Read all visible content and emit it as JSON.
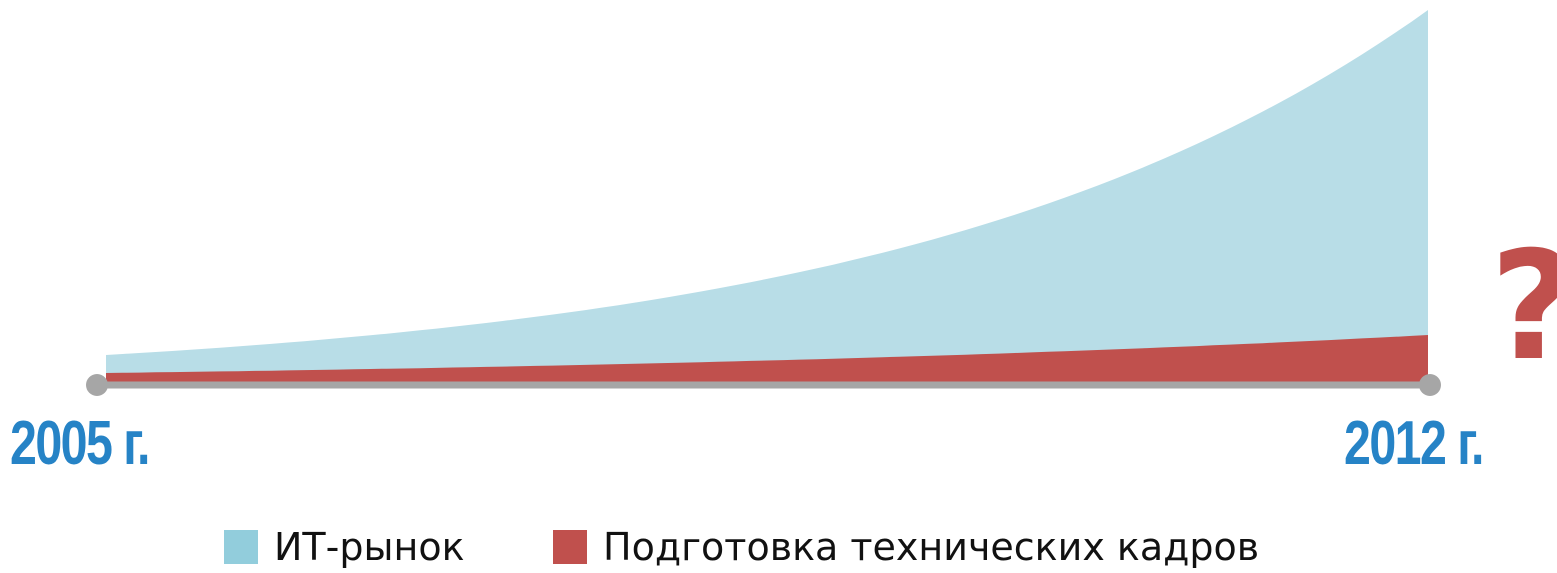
{
  "chart_data": {
    "type": "area",
    "title": "",
    "xlabel": "",
    "ylabel": "",
    "x": [
      2005,
      2012
    ],
    "categories": [
      "2005 г.",
      "2012 г."
    ],
    "series": [
      {
        "name": "ИТ-рынок",
        "color": "#b8dde7",
        "values": [
          30,
          375
        ],
        "growth": "exponential"
      },
      {
        "name": "Подготовка технических кадров",
        "color": "#c0504d",
        "values": [
          12,
          50
        ],
        "growth": "exponential"
      }
    ],
    "ylim": [
      0,
      375
    ],
    "grid": false,
    "legend_position": "bottom",
    "annotation": "?",
    "axis_color": "#a6a6a6"
  },
  "labels": {
    "year_start": "2005 г.",
    "year_end": "2012 г.",
    "question": "?",
    "year_color": "#2683c6",
    "question_color": "#c0504d"
  },
  "legend": [
    {
      "label": "ИТ-рынок",
      "color": "#92cddc"
    },
    {
      "label": "Подготовка технических кадров",
      "color": "#c0504d"
    }
  ]
}
